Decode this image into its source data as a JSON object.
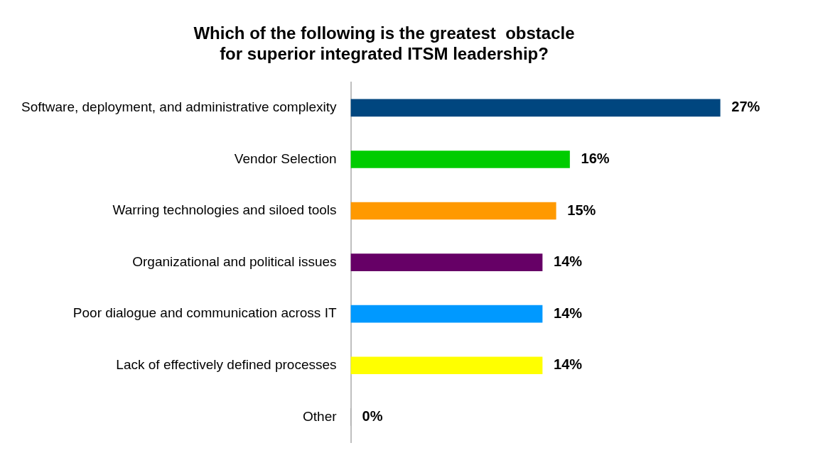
{
  "chart_data": {
    "type": "bar",
    "orientation": "horizontal",
    "title": "Which of the following is the greatest  obstacle\nfor superior integrated ITSM leadership?",
    "categories": [
      "Software, deployment, and administrative complexity",
      "Vendor Selection",
      "Warring technologies and siloed tools",
      "Organizational and political issues",
      "Poor dialogue and communication across IT",
      "Lack of effectively defined processes",
      "Other"
    ],
    "values": [
      27,
      16,
      15,
      14,
      14,
      14,
      0
    ],
    "colors": [
      "#00467f",
      "#00cc00",
      "#ff9900",
      "#660066",
      "#0099ff",
      "#ffff00",
      "#808080"
    ],
    "value_labels": [
      "27%",
      "16%",
      "15%",
      "14%",
      "14%",
      "14%",
      "0%"
    ],
    "tick_labels": "y",
    "legend": false
  }
}
